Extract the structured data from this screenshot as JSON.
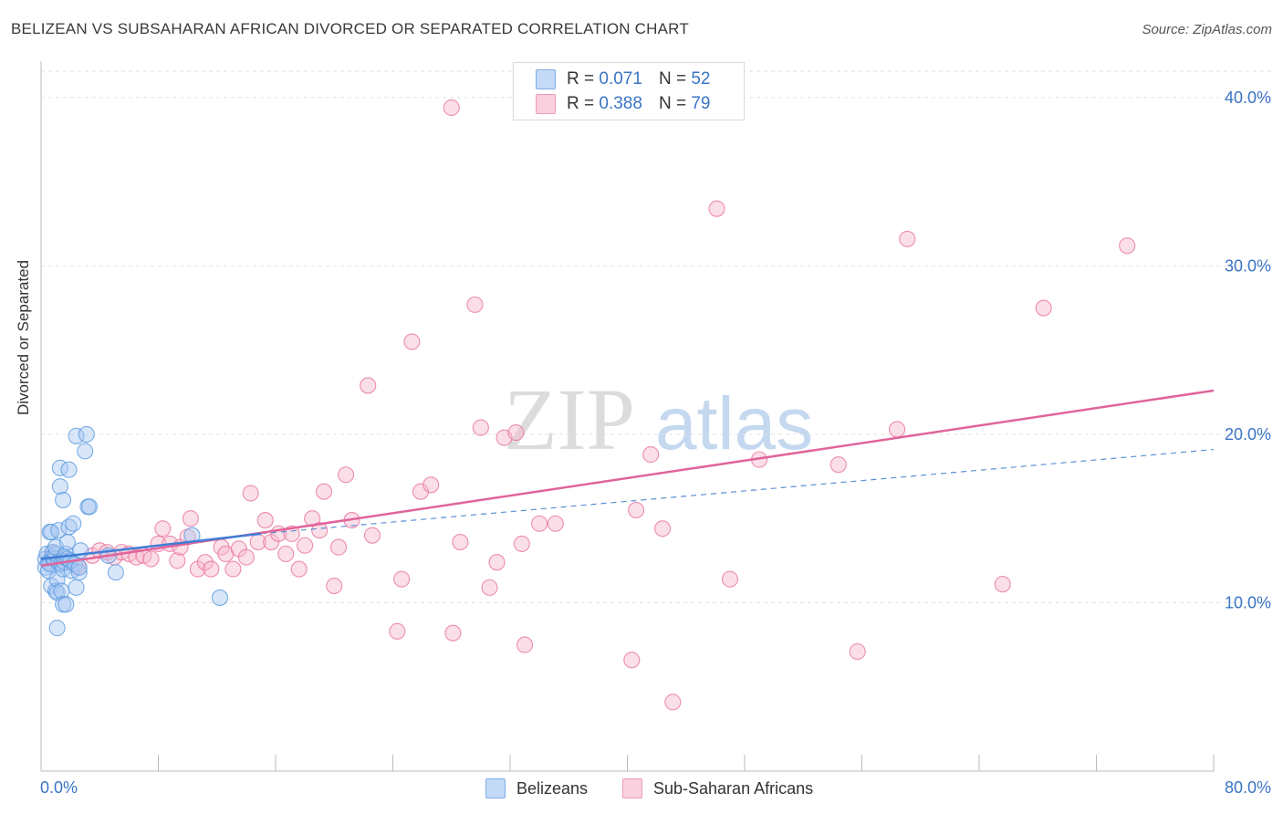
{
  "header": {
    "title": "BELIZEAN VS SUBSAHARAN AFRICAN DIVORCED OR SEPARATED CORRELATION CHART",
    "source": "Source: ZipAtlas.com"
  },
  "watermark": {
    "zip": "ZIP",
    "atlas": "atlas"
  },
  "legend": {
    "r_label": "R =",
    "n_label": "N =",
    "rows": [
      {
        "r": "0.071",
        "n": "52",
        "color": "#a9c8f2"
      },
      {
        "r": "0.388",
        "n": "79",
        "color": "#f6b8cd"
      }
    ]
  },
  "bottom_legend": [
    {
      "label": "Belizeans",
      "color": "#a9c8f2"
    },
    {
      "label": "Sub-Saharan Africans",
      "color": "#f6b8cd"
    }
  ],
  "chart_data": {
    "type": "scatter",
    "title": "BELIZEAN VS SUBSAHARAN AFRICAN DIVORCED OR SEPARATED CORRELATION CHART",
    "xlabel": "",
    "ylabel": "Divorced or Separated",
    "xlim": [
      0,
      80
    ],
    "ylim": [
      0,
      42
    ],
    "x_tick_labels": [
      "0.0%",
      "80.0%"
    ],
    "y_ticks": [
      10,
      20,
      30,
      40
    ],
    "y_tick_labels": [
      "10.0%",
      "20.0%",
      "30.0%",
      "40.0%"
    ],
    "grid": true,
    "legend_position": "top-center",
    "series": [
      {
        "name": "Belizeans",
        "color": "#5b9be0",
        "fill": "#a9c8f2",
        "r": 0.071,
        "n": 52,
        "trend": {
          "x": [
            0,
            15
          ],
          "y": [
            12.6,
            14.1
          ],
          "style": "solid"
        },
        "trend_extended": {
          "x": [
            15,
            80
          ],
          "y": [
            14.1,
            19.1
          ],
          "style": "dashed"
        },
        "points": [
          [
            0.3,
            12.1
          ],
          [
            0.3,
            12.6
          ],
          [
            0.4,
            12.9
          ],
          [
            0.5,
            12.4
          ],
          [
            0.5,
            11.9
          ],
          [
            0.6,
            12.3
          ],
          [
            0.6,
            14.2
          ],
          [
            0.7,
            14.2
          ],
          [
            0.7,
            11.0
          ],
          [
            0.8,
            12.7
          ],
          [
            0.8,
            13.0
          ],
          [
            0.9,
            12.6
          ],
          [
            1.0,
            10.7
          ],
          [
            1.0,
            12.9
          ],
          [
            1.0,
            13.3
          ],
          [
            1.1,
            11.4
          ],
          [
            1.1,
            10.6
          ],
          [
            1.1,
            8.5
          ],
          [
            1.2,
            12.4
          ],
          [
            1.2,
            14.3
          ],
          [
            1.3,
            16.9
          ],
          [
            1.3,
            18.0
          ],
          [
            1.4,
            12.3
          ],
          [
            1.4,
            10.7
          ],
          [
            1.5,
            12.0
          ],
          [
            1.5,
            9.9
          ],
          [
            1.5,
            16.1
          ],
          [
            1.6,
            12.4
          ],
          [
            1.6,
            12.7
          ],
          [
            1.7,
            9.9
          ],
          [
            1.7,
            12.9
          ],
          [
            1.8,
            13.6
          ],
          [
            1.8,
            12.6
          ],
          [
            1.9,
            17.9
          ],
          [
            1.9,
            14.5
          ],
          [
            2.0,
            12.5
          ],
          [
            2.1,
            11.9
          ],
          [
            2.2,
            14.7
          ],
          [
            2.3,
            12.3
          ],
          [
            2.4,
            19.9
          ],
          [
            2.4,
            10.9
          ],
          [
            2.6,
            11.8
          ],
          [
            2.6,
            12.1
          ],
          [
            2.7,
            13.1
          ],
          [
            3.0,
            19.0
          ],
          [
            3.1,
            20.0
          ],
          [
            3.2,
            15.7
          ],
          [
            3.3,
            15.7
          ],
          [
            4.6,
            12.8
          ],
          [
            5.1,
            11.8
          ],
          [
            10.3,
            14.0
          ],
          [
            12.2,
            10.3
          ]
        ]
      },
      {
        "name": "Sub-Saharan Africans",
        "color": "#e8739e",
        "fill": "#f6b8cd",
        "r": 0.388,
        "n": 79,
        "trend": {
          "x": [
            0,
            80
          ],
          "y": [
            12.2,
            22.6
          ],
          "style": "solid"
        },
        "points": [
          [
            2.0,
            12.4
          ],
          [
            2.5,
            12.2
          ],
          [
            3.5,
            12.8
          ],
          [
            4.0,
            13.1
          ],
          [
            4.5,
            13.0
          ],
          [
            5.0,
            12.7
          ],
          [
            5.5,
            13.0
          ],
          [
            6.0,
            12.9
          ],
          [
            6.5,
            12.7
          ],
          [
            7.0,
            12.8
          ],
          [
            7.5,
            12.6
          ],
          [
            8.0,
            13.5
          ],
          [
            8.3,
            14.4
          ],
          [
            8.8,
            13.5
          ],
          [
            9.3,
            12.5
          ],
          [
            9.5,
            13.3
          ],
          [
            10.0,
            13.9
          ],
          [
            10.2,
            15.0
          ],
          [
            10.7,
            12.0
          ],
          [
            11.2,
            12.4
          ],
          [
            11.6,
            12.0
          ],
          [
            12.3,
            13.3
          ],
          [
            12.6,
            12.9
          ],
          [
            13.1,
            12.0
          ],
          [
            13.5,
            13.2
          ],
          [
            14.0,
            12.7
          ],
          [
            14.3,
            16.5
          ],
          [
            14.8,
            13.6
          ],
          [
            15.3,
            14.9
          ],
          [
            15.7,
            13.6
          ],
          [
            16.2,
            14.1
          ],
          [
            16.7,
            12.9
          ],
          [
            17.1,
            14.1
          ],
          [
            17.6,
            12.0
          ],
          [
            18.0,
            13.4
          ],
          [
            18.5,
            15.0
          ],
          [
            19.0,
            14.3
          ],
          [
            19.3,
            16.6
          ],
          [
            20.0,
            11.0
          ],
          [
            20.3,
            13.3
          ],
          [
            20.8,
            17.6
          ],
          [
            21.2,
            14.9
          ],
          [
            22.3,
            22.9
          ],
          [
            22.6,
            14.0
          ],
          [
            24.3,
            8.3
          ],
          [
            24.6,
            11.4
          ],
          [
            25.3,
            25.5
          ],
          [
            25.9,
            16.6
          ],
          [
            26.6,
            17.0
          ],
          [
            28.0,
            39.4
          ],
          [
            28.1,
            8.2
          ],
          [
            28.6,
            13.6
          ],
          [
            29.6,
            27.7
          ],
          [
            30.0,
            20.4
          ],
          [
            30.6,
            10.9
          ],
          [
            31.1,
            12.4
          ],
          [
            31.6,
            19.8
          ],
          [
            32.4,
            20.1
          ],
          [
            32.8,
            13.5
          ],
          [
            33.0,
            7.5
          ],
          [
            34.0,
            14.7
          ],
          [
            35.1,
            14.7
          ],
          [
            40.3,
            6.6
          ],
          [
            40.6,
            15.5
          ],
          [
            41.6,
            18.8
          ],
          [
            42.4,
            14.4
          ],
          [
            43.1,
            4.1
          ],
          [
            46.1,
            33.4
          ],
          [
            47.0,
            11.4
          ],
          [
            49.0,
            18.5
          ],
          [
            54.4,
            18.2
          ],
          [
            55.7,
            7.1
          ],
          [
            58.4,
            20.3
          ],
          [
            59.1,
            31.6
          ],
          [
            65.6,
            11.1
          ],
          [
            68.4,
            27.5
          ],
          [
            74.1,
            31.2
          ],
          [
            0.8,
            13.0
          ],
          [
            1.3,
            12.6
          ]
        ]
      }
    ]
  }
}
